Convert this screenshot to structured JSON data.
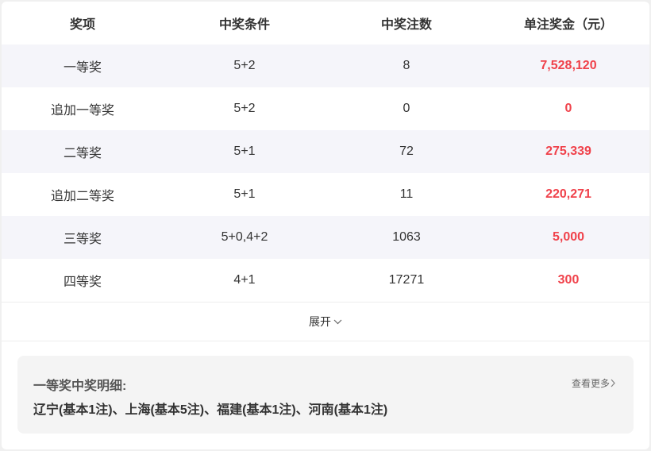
{
  "table": {
    "headers": [
      "奖项",
      "中奖条件",
      "中奖注数",
      "单注奖金（元）"
    ],
    "rows": [
      {
        "name": "一等奖",
        "condition": "5+2",
        "count": "8",
        "prize": "7,528,120"
      },
      {
        "name": "追加一等奖",
        "condition": "5+2",
        "count": "0",
        "prize": "0"
      },
      {
        "name": "二等奖",
        "condition": "5+1",
        "count": "72",
        "prize": "275,339"
      },
      {
        "name": "追加二等奖",
        "condition": "5+1",
        "count": "11",
        "prize": "220,271"
      },
      {
        "name": "三等奖",
        "condition": "5+0,4+2",
        "count": "1063",
        "prize": "5,000"
      },
      {
        "name": "四等奖",
        "condition": "4+1",
        "count": "17271",
        "prize": "300"
      }
    ]
  },
  "expand_label": "展开",
  "detail": {
    "title": "一等奖中奖明细:",
    "more_label": "查看更多",
    "text": "辽宁(基本1注)、上海(基本5注)、福建(基本1注)、河南(基本1注)"
  },
  "colors": {
    "prize": "#f0424b",
    "alt_row": "#f5f5fa"
  }
}
